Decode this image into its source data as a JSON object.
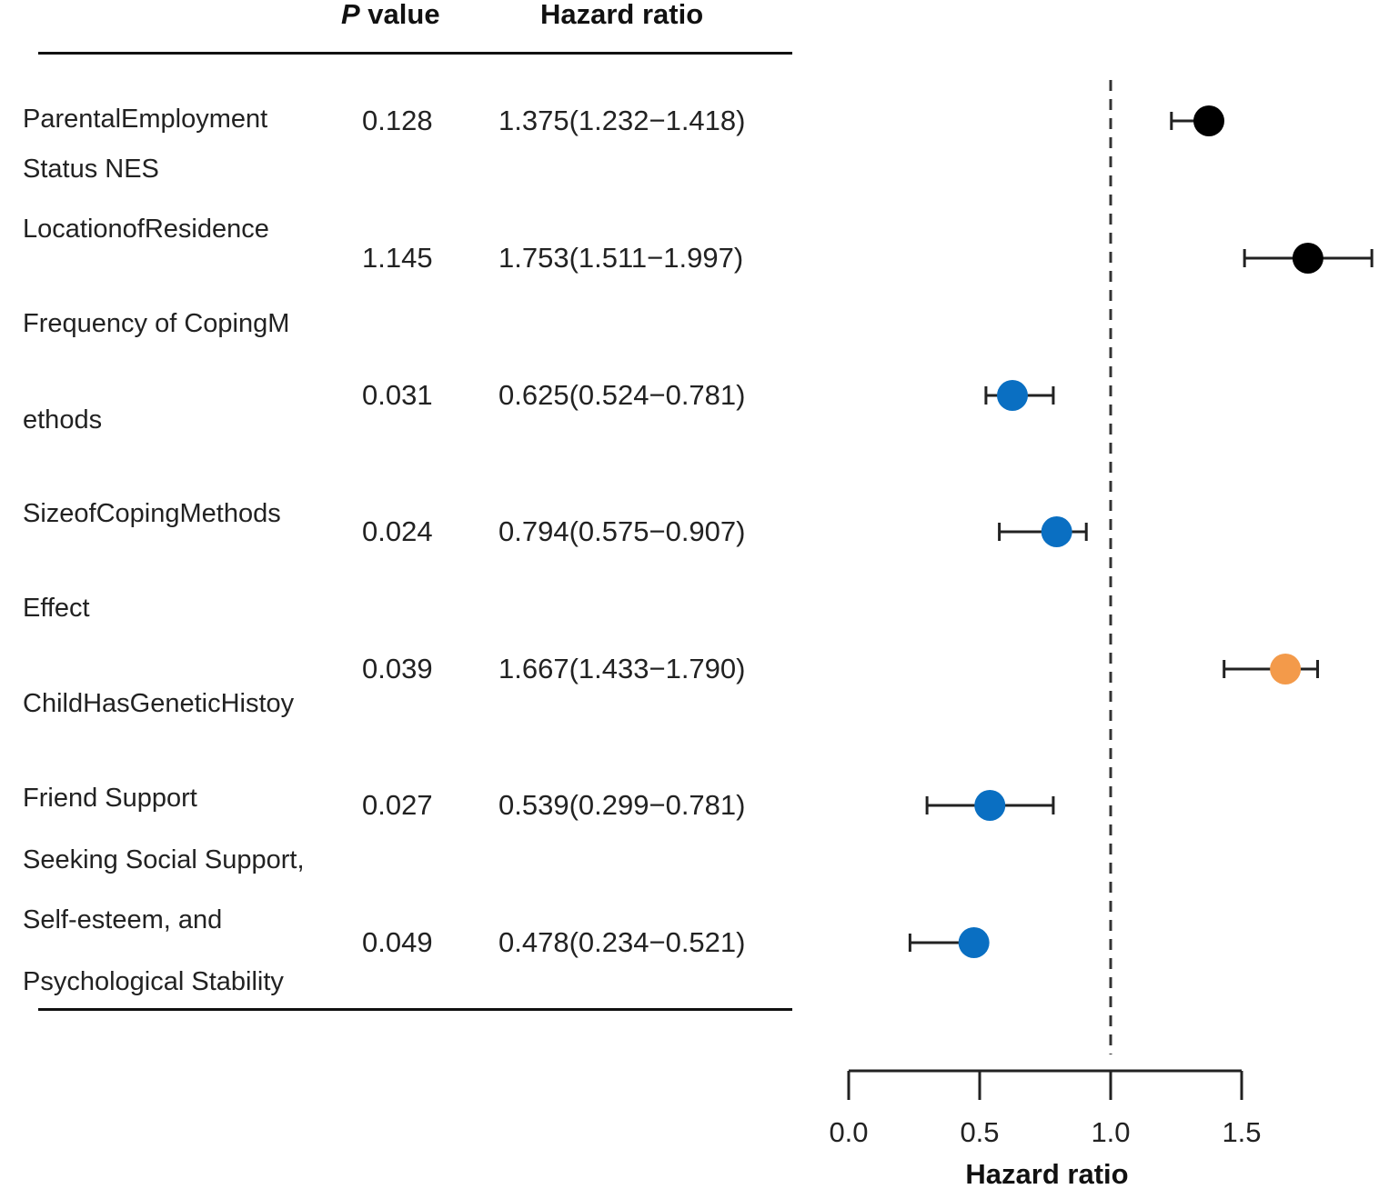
{
  "table": {
    "header_p_italic": "P",
    "header_p_rest": " value",
    "header_hr": "Hazard ratio",
    "rows": [
      {
        "label_lines": [
          "ParentalEmployment",
          "Status NES"
        ],
        "p": "0.128",
        "hr_text": "1.375(1.232−1.418)"
      },
      {
        "label_lines": [
          "LocationofResidence"
        ],
        "p": "1.145",
        "hr_text": "1.753(1.511−1.997)"
      },
      {
        "label_lines": [
          "Frequency of CopingM",
          "ethods"
        ],
        "p": "0.031",
        "hr_text": "0.625(0.524−0.781)"
      },
      {
        "label_lines": [
          "SizeofCopingMethods"
        ],
        "p": "0.024",
        "hr_text": "0.794(0.575−0.907)"
      },
      {
        "label_lines": [
          "Effect",
          "ChildHasGeneticHistoy"
        ],
        "p": "0.039",
        "hr_text": "1.667(1.433−1.790)"
      },
      {
        "label_lines": [
          "Friend Support"
        ],
        "p": "0.027",
        "hr_text": "0.539(0.299−0.781)"
      },
      {
        "label_lines": [
          "Seeking Social Support,",
          "Self-esteem, and",
          "Psychological Stability"
        ],
        "p": "0.049",
        "hr_text": "0.478(0.234−0.521)"
      }
    ]
  },
  "chart_data": {
    "type": "scatter",
    "subtype": "forest",
    "xlabel": "Hazard ratio",
    "xlim": [
      0.0,
      1.5
    ],
    "xticks": [
      "0.0",
      "0.5",
      "1.0",
      "1.5"
    ],
    "reference_line": 1.0,
    "colors": {
      "black": "#000000",
      "blue": "#0a6fc2",
      "orange": "#f39a4a"
    },
    "points": [
      {
        "hr": 1.375,
        "lo": 1.232,
        "hi": 1.418,
        "color": "#000000"
      },
      {
        "hr": 1.753,
        "lo": 1.511,
        "hi": 1.997,
        "color": "#000000"
      },
      {
        "hr": 0.625,
        "lo": 0.524,
        "hi": 0.781,
        "color": "#0a6fc2"
      },
      {
        "hr": 0.794,
        "lo": 0.575,
        "hi": 0.907,
        "color": "#0a6fc2"
      },
      {
        "hr": 1.667,
        "lo": 1.433,
        "hi": 1.79,
        "color": "#f39a4a"
      },
      {
        "hr": 0.539,
        "lo": 0.299,
        "hi": 0.781,
        "color": "#0a6fc2"
      },
      {
        "hr": 0.478,
        "lo": 0.234,
        "hi": 0.521,
        "color": "#0a6fc2"
      }
    ]
  }
}
